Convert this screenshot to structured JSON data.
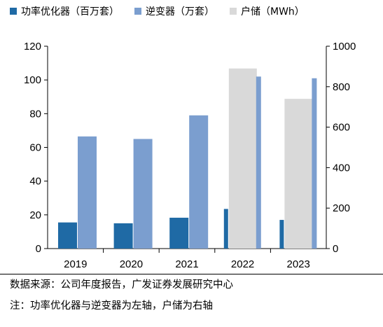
{
  "chart_data": {
    "type": "bar",
    "categories": [
      "2019",
      "2020",
      "2021",
      "2022",
      "2023"
    ],
    "series": [
      {
        "name": "功率优化器（百万套）",
        "axis": "left",
        "color": "#1f6aa5",
        "values": [
          15.5,
          15.0,
          18.3,
          23.5,
          17.0
        ]
      },
      {
        "name": "逆变器（万套）",
        "axis": "left",
        "color": "#7b9ecf",
        "values": [
          66.5,
          65.0,
          79.0,
          102.0,
          101.0
        ]
      },
      {
        "name": "户储（MWh）",
        "axis": "right",
        "color": "#d9d9d9",
        "values": [
          0,
          0,
          0,
          890,
          740
        ]
      }
    ],
    "y_left": {
      "min": 0,
      "max": 120,
      "ticks": [
        0,
        20,
        40,
        60,
        80,
        100,
        120
      ]
    },
    "y_right": {
      "min": 0,
      "max": 1000,
      "ticks": [
        0,
        200,
        400,
        600,
        800,
        1000
      ]
    },
    "legend_position": "top",
    "grid": false
  },
  "notes": {
    "source": "数据来源：公司年度报告，广发证券发展研究中心",
    "note": "注：功率优化器与逆变器为左轴，户储为右轴"
  }
}
